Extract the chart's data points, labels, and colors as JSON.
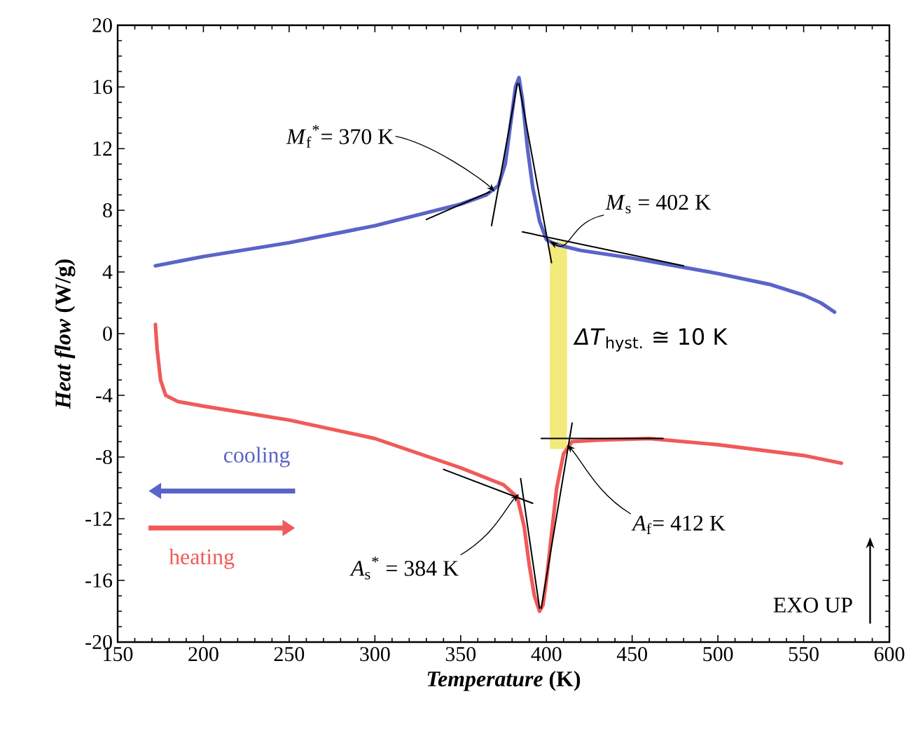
{
  "chart_data": {
    "type": "line",
    "xlabel": "*Temperature* (K)",
    "ylabel": "*Heat flow* (W/g)",
    "xlim": [
      150,
      600
    ],
    "xticks": [
      150,
      200,
      250,
      300,
      350,
      400,
      450,
      500,
      550,
      600
    ],
    "ylim": [
      -20,
      20
    ],
    "yticks": [
      -20,
      -16,
      -12,
      -8,
      -4,
      0,
      4,
      8,
      12,
      16,
      20
    ],
    "legend": "bottom left",
    "series": [
      {
        "name": "cooling",
        "color": "#5a64c8",
        "x": [
          172,
          200,
          250,
          300,
          350,
          365,
          372,
          376,
          379,
          382,
          384,
          386,
          389,
          392,
          396,
          400,
          405,
          420,
          450,
          480,
          500,
          530,
          550,
          560,
          568
        ],
        "values": [
          4.4,
          5.0,
          5.9,
          7.0,
          8.4,
          9.0,
          9.6,
          11,
          13.5,
          16,
          16.6,
          15.2,
          12,
          9.5,
          7.3,
          6.1,
          5.8,
          5.4,
          4.9,
          4.3,
          3.9,
          3.2,
          2.5,
          2.0,
          1.4
        ]
      },
      {
        "name": "heating",
        "color": "#f05a5a",
        "x": [
          172,
          173,
          175,
          178,
          185,
          200,
          250,
          300,
          350,
          375,
          383,
          387,
          390,
          393,
          396,
          398,
          400,
          403,
          406,
          410,
          415,
          430,
          460,
          500,
          550,
          572
        ],
        "values": [
          0.6,
          -1.0,
          -3.0,
          -4.0,
          -4.4,
          -4.7,
          -5.6,
          -6.8,
          -8.7,
          -9.8,
          -10.6,
          -12.5,
          -15,
          -17,
          -18,
          -17.6,
          -16,
          -13,
          -10,
          -7.8,
          -7.0,
          -6.9,
          -6.8,
          -7.2,
          -7.9,
          -8.4
        ]
      },
      {
        "color": "#000000",
        "x": [
          330,
          367
        ],
        "values": [
          7.4,
          9.2
        ]
      },
      {
        "color": "#000000",
        "x": [
          368,
          383
        ],
        "values": [
          7.0,
          16.2
        ]
      },
      {
        "color": "#000000",
        "x": [
          384,
          403
        ],
        "values": [
          16.2,
          4.6
        ]
      },
      {
        "color": "#000000",
        "x": [
          386,
          480
        ],
        "values": [
          6.6,
          4.4
        ]
      },
      {
        "color": "#000000",
        "x": [
          340,
          392
        ],
        "values": [
          -8.8,
          -11.0
        ]
      },
      {
        "color": "#000000",
        "x": [
          385,
          396
        ],
        "values": [
          -9.4,
          -17.8
        ]
      },
      {
        "color": "#000000",
        "x": [
          397,
          415
        ],
        "values": [
          -17.8,
          -5.8
        ]
      },
      {
        "color": "#000000",
        "x": [
          397,
          468
        ],
        "values": [
          -6.8,
          -6.8
        ]
      }
    ],
    "bands": [
      {
        "axis": "x",
        "from": 402,
        "to": 412,
        "color": "#f2ea7a"
      }
    ],
    "annotations": [
      {
        "text": "*M*$_{f}$$^{*}$= 370 K",
        "x": 370,
        "y": 9.2
      },
      {
        "text": "*M*$_{s}$ = 402 K",
        "x": 402,
        "y": 6.0
      },
      "*ΔT*$_{hyst.}$ ≅ 10 K",
      {
        "text": "*A*$_{s}$$^{*}$ = 384 K",
        "x": 384,
        "y": -10.4
      },
      {
        "text": "*A*$_{f}$= 412 K",
        "x": 412,
        "y": -7.2
      },
      "EXO UP"
    ]
  }
}
